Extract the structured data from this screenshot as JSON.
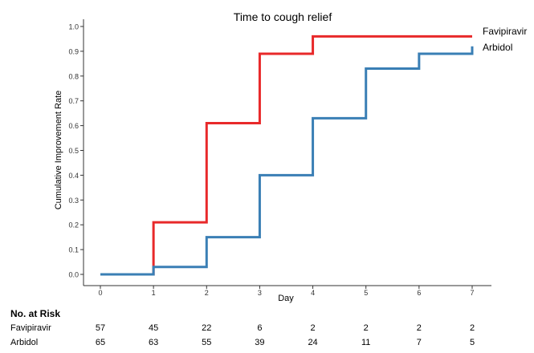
{
  "chart_data": {
    "type": "line",
    "title": "Time to cough relief",
    "xlabel": "Day",
    "ylabel": "Cumulative Improvement Rate",
    "xlim": [
      0,
      7
    ],
    "ylim": [
      0,
      1.0
    ],
    "x_ticks": [
      "0",
      "1",
      "2",
      "3",
      "4",
      "5",
      "6",
      "7"
    ],
    "y_ticks": [
      "0.0",
      "0.1",
      "0.2",
      "0.3",
      "0.4",
      "0.5",
      "0.6",
      "0.7",
      "0.8",
      "0.9",
      "1.0"
    ],
    "step": true,
    "grid": false,
    "legend": "direct labels at right end of lines",
    "series": [
      {
        "name": "Favipiravir",
        "color": "#e8292a",
        "x": [
          0,
          1,
          2,
          3,
          4,
          7
        ],
        "values": [
          0.0,
          0.21,
          0.61,
          0.89,
          0.96,
          0.96
        ]
      },
      {
        "name": "Arbidol",
        "color": "#3a7fb5",
        "x": [
          0,
          1,
          2,
          3,
          4,
          5,
          6,
          7,
          7
        ],
        "values": [
          0.0,
          0.03,
          0.15,
          0.4,
          0.63,
          0.83,
          0.89,
          0.89,
          0.92
        ]
      }
    ]
  },
  "risk_table": {
    "title": "No. at Risk",
    "rows": [
      {
        "label": "Favipiravir",
        "values": [
          "57",
          "45",
          "22",
          "6",
          "2",
          "2",
          "2",
          "2"
        ]
      },
      {
        "label": "Arbidol",
        "values": [
          "65",
          "63",
          "55",
          "39",
          "24",
          "11",
          "7",
          "5"
        ]
      }
    ]
  }
}
